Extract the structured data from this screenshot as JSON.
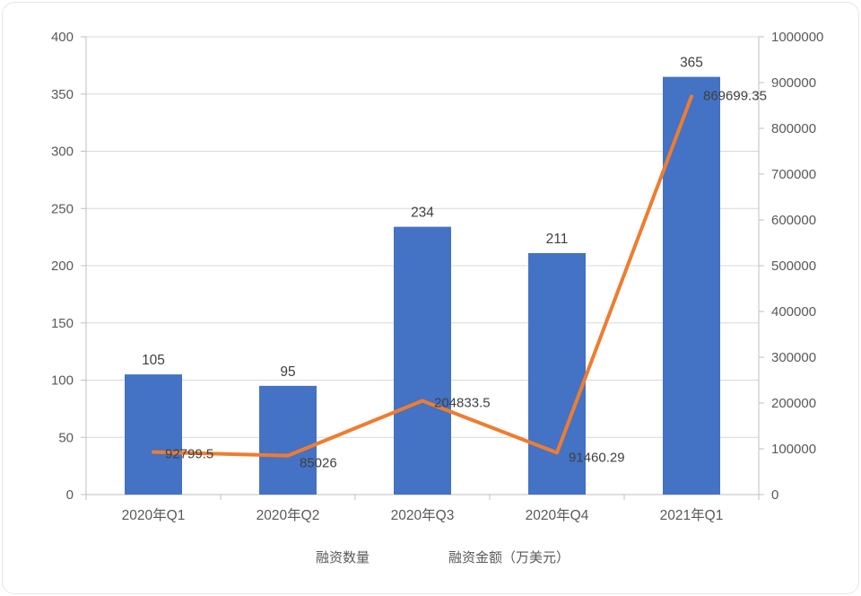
{
  "colors": {
    "bar": "#4472C4",
    "line": "#ED7D31",
    "grid": "#D9D9D9",
    "axis": "#BFBFBF",
    "tick_text": "#595959",
    "label_text": "#404040"
  },
  "chart_data": {
    "type": "bar",
    "subtype": "combo-bar-line",
    "title": "",
    "xlabel": "",
    "ylabel": "",
    "grid": true,
    "legend_position": "bottom",
    "categories": [
      "2020年Q1",
      "2020年Q2",
      "2020年Q3",
      "2020年Q4",
      "2021年Q1"
    ],
    "series": [
      {
        "name": "融资数量",
        "type": "bar",
        "axis": "left",
        "color": "#4472C4",
        "values": [
          105,
          95,
          234,
          211,
          365
        ],
        "labels": [
          "105",
          "95",
          "234",
          "211",
          "365"
        ]
      },
      {
        "name": "融资金额（万美元）",
        "type": "line",
        "axis": "right",
        "color": "#ED7D31",
        "values": [
          92799.5,
          85026,
          204833.5,
          91460.29,
          869699.35
        ],
        "labels": [
          "92799.5",
          "85026",
          "204833.5",
          "91460.29",
          "869699.35"
        ]
      }
    ],
    "left_axis": {
      "min": 0,
      "max": 400,
      "step": 50,
      "ticks": [
        "0",
        "50",
        "100",
        "150",
        "200",
        "250",
        "300",
        "350",
        "400"
      ]
    },
    "right_axis": {
      "min": 0,
      "max": 1000000,
      "step": 100000,
      "ticks": [
        "0",
        "100000",
        "200000",
        "300000",
        "400000",
        "500000",
        "600000",
        "700000",
        "800000",
        "900000",
        "1000000"
      ]
    }
  }
}
